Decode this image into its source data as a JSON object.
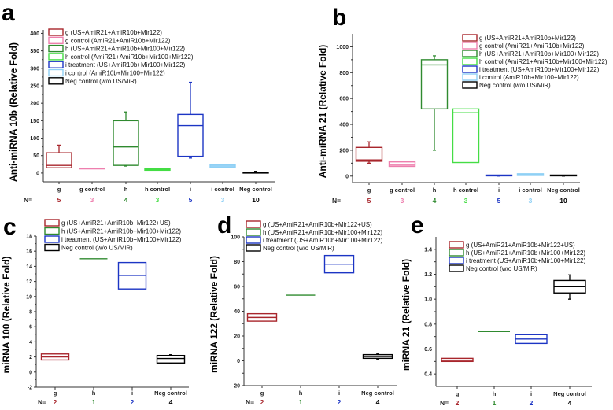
{
  "colors": {
    "g": "#a8262c",
    "g_control": "#ee7fae",
    "h": "#2f8a2f",
    "h_control": "#45dd45",
    "i": "#1c35c4",
    "i_control": "#8fd0f5",
    "neg": "#000000"
  },
  "n_prefix": "N=",
  "chart_data": [
    {
      "type": "box",
      "panel": "a",
      "ylabel": "Anti-miRNA 10b (Relative Fold)",
      "ylim": [
        -25,
        410
      ],
      "yticks": [
        "0",
        "50",
        "100",
        "150",
        "200",
        "250",
        "300",
        "350",
        "400"
      ],
      "ytick_values": [
        0,
        50,
        100,
        150,
        200,
        250,
        300,
        350,
        400
      ],
      "legend_placement": "top-left",
      "legend": [
        "g (US+AmiR21+AmiR10b+Mir122)",
        "g control  (AmiR21+AmiR10b+Mir122)",
        "h (US+AmiR21+AmiR10b+Mir100+Mir122)",
        "h control (AmiR21+AmiR10b+Mir100+Mir122)",
        "i treatment (US+AmiR10b+Mir100+Mir122)",
        "i control (AmiR10b+Mir100+Mir122)",
        "Neg control (w/o US/MiR)"
      ],
      "categories": [
        "g",
        "g control",
        "h",
        "h control",
        "i",
        "i control",
        "Neg control"
      ],
      "n": [
        "5",
        "3",
        "4",
        "3",
        "5",
        "3",
        "10"
      ],
      "color_keys": [
        "g",
        "g_control",
        "h",
        "h_control",
        "i",
        "i_control",
        "neg"
      ],
      "boxes": [
        {
          "min": 15,
          "q1": 15,
          "median": 22,
          "q3": 58,
          "max": 80
        },
        {
          "min": 12,
          "q1": 12,
          "median": 13,
          "q3": 14,
          "max": 14
        },
        {
          "min": 20,
          "q1": 22,
          "median": 75,
          "q3": 150,
          "max": 175
        },
        {
          "min": 8,
          "q1": 8,
          "median": 10,
          "q3": 12,
          "max": 12
        },
        {
          "min": 43,
          "q1": 48,
          "median": 136,
          "q3": 168,
          "max": 260
        },
        {
          "min": 17,
          "q1": 17,
          "median": 20,
          "q3": 23,
          "max": 23
        },
        {
          "min": 0,
          "q1": 0,
          "median": 1,
          "q3": 2,
          "max": 5
        }
      ]
    },
    {
      "type": "box",
      "panel": "b",
      "ylabel": "Anti-miRNA 21 (Relative Fold)",
      "ylim": [
        -50,
        1100
      ],
      "yticks": [
        "0",
        "200",
        "400",
        "600",
        "800",
        "1000"
      ],
      "ytick_values": [
        0,
        200,
        400,
        600,
        800,
        1000
      ],
      "legend_placement": "top-right",
      "legend": [
        "g (US+AmiR21+AmiR10b+Mir122)",
        "g control  (AmiR21+AmiR10b+Mir122)",
        "h (US+AmiR21+AmiR10b+Mir100+Mir122)",
        "h control (AmiR21+AmiR10b+Mir100+Mir122)",
        "i treatment (US+AmiR10b+Mir100+Mir122)",
        "i control (AmiR10b+Mir100+Mir122)",
        "Neg control (w/o US/MiR)"
      ],
      "categories": [
        "g",
        "g control",
        "h",
        "h control",
        "i",
        "i control",
        "Neg control"
      ],
      "n": [
        "5",
        "3",
        "4",
        "3",
        "5",
        "3",
        "10"
      ],
      "color_keys": [
        "g",
        "g_control",
        "h",
        "h_control",
        "i",
        "i_control",
        "neg"
      ],
      "boxes": [
        {
          "min": 100,
          "q1": 115,
          "median": 125,
          "q3": 222,
          "max": 265
        },
        {
          "min": 75,
          "q1": 75,
          "median": 85,
          "q3": 110,
          "max": 110
        },
        {
          "min": 200,
          "q1": 520,
          "median": 860,
          "q3": 900,
          "max": 930
        },
        {
          "min": 105,
          "q1": 105,
          "median": 490,
          "q3": 520,
          "max": 520
        },
        {
          "min": 0,
          "q1": 2,
          "median": 4,
          "q3": 8,
          "max": 8
        },
        {
          "min": 5,
          "q1": 5,
          "median": 10,
          "q3": 18,
          "max": 18
        },
        {
          "min": 0,
          "q1": 2,
          "median": 4,
          "q3": 8,
          "max": 8
        }
      ]
    },
    {
      "type": "box",
      "panel": "c",
      "ylabel": "miRNA 100 (Relative Fold)",
      "ylim": [
        -2,
        18
      ],
      "yticks": [
        "-2",
        "0",
        "2",
        "4",
        "6",
        "8",
        "10",
        "12",
        "14",
        "16",
        "18"
      ],
      "ytick_values": [
        -2,
        0,
        2,
        4,
        6,
        8,
        10,
        12,
        14,
        16,
        18
      ],
      "legend_placement": "top-left",
      "legend": [
        "g (US+AmiR21+AmiR10b+Mir122+US)",
        "h (US+AmiR21+AmiR10b+Mir100+Mir122)",
        "i treatment (US+AmiR10b+Mir100+Mir122)",
        "Neg control (w/o US/MiR)"
      ],
      "categories": [
        "g",
        "h",
        "i",
        "Neg control"
      ],
      "n": [
        "2",
        "1",
        "2",
        "4"
      ],
      "color_keys": [
        "g",
        "h",
        "i",
        "neg"
      ],
      "boxes": [
        {
          "min": 1.6,
          "q1": 1.6,
          "median": 2.0,
          "q3": 2.4,
          "max": 2.4
        },
        {
          "min": 15,
          "q1": 15,
          "median": 15,
          "q3": 15,
          "max": 15
        },
        {
          "min": 11,
          "q1": 11,
          "median": 12.8,
          "q3": 14.5,
          "max": 14.5
        },
        {
          "min": 1.1,
          "q1": 1.2,
          "median": 1.8,
          "q3": 2.2,
          "max": 2.3
        }
      ]
    },
    {
      "type": "box",
      "panel": "d",
      "ylabel": "miRNA 122 (Relative Fold)",
      "ylim": [
        -20,
        100
      ],
      "yticks": [
        "-20",
        "0",
        "20",
        "40",
        "60",
        "80",
        "100"
      ],
      "ytick_values": [
        -20,
        0,
        20,
        40,
        60,
        80,
        100
      ],
      "legend_placement": "top-left",
      "legend": [
        "g (US+AmiR21+AmiR10b+Mir122+US)",
        "h (US+AmiR21+AmiR10b+Mir100+Mir122)",
        "i treatment (US+AmiR10b+Mir100+Mir122)",
        "Neg control (w/o US/MiR)"
      ],
      "categories": [
        "g",
        "h",
        "i",
        "Neg control"
      ],
      "n": [
        "2",
        "1",
        "2",
        "4"
      ],
      "color_keys": [
        "g",
        "h",
        "i",
        "neg"
      ],
      "boxes": [
        {
          "min": 32,
          "q1": 32,
          "median": 35,
          "q3": 38,
          "max": 38
        },
        {
          "min": 53,
          "q1": 53,
          "median": 53,
          "q3": 53,
          "max": 53
        },
        {
          "min": 71,
          "q1": 71,
          "median": 78,
          "q3": 85,
          "max": 85
        },
        {
          "min": 1,
          "q1": 2,
          "median": 3.5,
          "q3": 5,
          "max": 6
        }
      ]
    },
    {
      "type": "box",
      "panel": "e",
      "ylabel": "miRNA 21 (Relative Fold)",
      "ylim": [
        0.3,
        1.5
      ],
      "yticks": [
        "0.4",
        "0.6",
        "0.8",
        "1.0",
        "1.2",
        "1.4"
      ],
      "ytick_values": [
        0.4,
        0.6,
        0.8,
        1.0,
        1.2,
        1.4
      ],
      "legend_placement": "top-left",
      "legend": [
        "g (US+AmiR21+AmiR10b+Mir122+US)",
        "h (US+AmiR21+AmiR10b+Mir100+Mir122)",
        "i treatment (US+AmiR10b+Mir100+Mir122)",
        "Neg control (w/o US/MiR)"
      ],
      "categories": [
        "g",
        "h",
        "i",
        "Neg control"
      ],
      "n": [
        "2",
        "1",
        "2",
        "4"
      ],
      "color_keys": [
        "g",
        "h",
        "i",
        "neg"
      ],
      "boxes": [
        {
          "min": 0.5,
          "q1": 0.5,
          "median": 0.51,
          "q3": 0.525,
          "max": 0.525
        },
        {
          "min": 0.74,
          "q1": 0.74,
          "median": 0.74,
          "q3": 0.74,
          "max": 0.74
        },
        {
          "min": 0.645,
          "q1": 0.645,
          "median": 0.68,
          "q3": 0.715,
          "max": 0.715
        },
        {
          "min": 1.0,
          "q1": 1.05,
          "median": 1.1,
          "q3": 1.15,
          "max": 1.195
        }
      ]
    }
  ]
}
